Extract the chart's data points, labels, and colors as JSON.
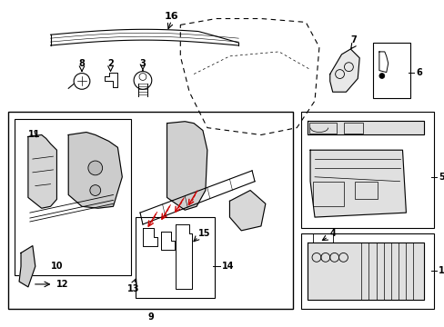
{
  "bg": "#ffffff",
  "lc": "#000000",
  "rc": "#cc0000",
  "fig_w": 4.89,
  "fig_h": 3.6,
  "dpi": 100
}
